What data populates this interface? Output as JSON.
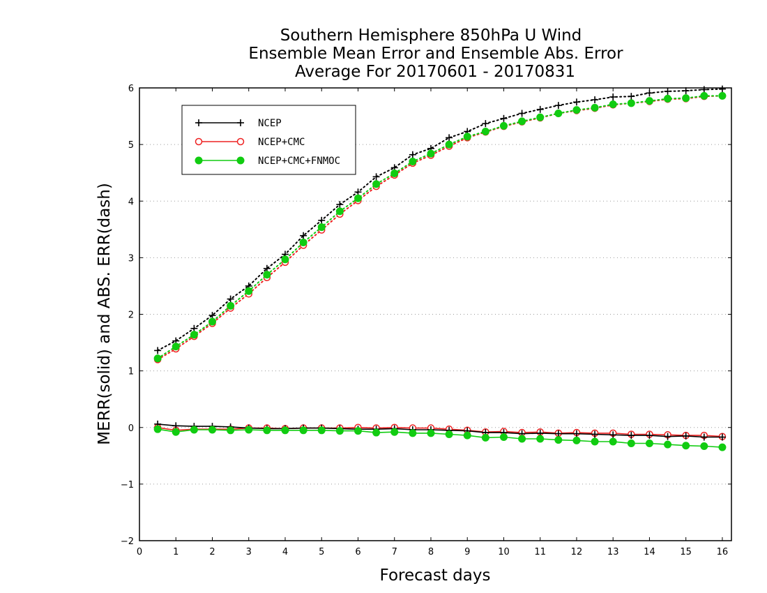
{
  "chart_data": {
    "type": "line",
    "title": [
      "Southern Hemisphere 850hPa U Wind",
      "Ensemble Mean Error and Ensemble Abs. Error",
      "Average For 20170601 - 20170831"
    ],
    "xlabel": "Forecast days",
    "ylabel": "MERR(solid) and ABS. ERR(dash)",
    "xlim": [
      0,
      16.25
    ],
    "ylim": [
      -2,
      6
    ],
    "xticks": [
      0,
      1,
      2,
      3,
      4,
      5,
      6,
      7,
      8,
      9,
      10,
      11,
      12,
      13,
      14,
      15,
      16
    ],
    "yticks": [
      -2,
      -1,
      0,
      1,
      2,
      3,
      4,
      5,
      6
    ],
    "grid": "horizontal dotted",
    "legend_position": "top-left",
    "x": [
      0.5,
      1,
      1.5,
      2,
      2.5,
      3,
      3.5,
      4,
      4.5,
      5,
      5.5,
      6,
      6.5,
      7,
      7.5,
      8,
      8.5,
      9,
      9.5,
      10,
      10.5,
      11,
      11.5,
      12,
      12.5,
      13,
      13.5,
      14,
      14.5,
      15,
      15.5,
      16
    ],
    "series": [
      {
        "name": "NCEP",
        "metric": "MERR",
        "line": "solid",
        "marker": "plus",
        "color": "#000000",
        "values": [
          0.06,
          0.03,
          0.02,
          0.02,
          0.01,
          -0.01,
          -0.02,
          -0.02,
          -0.01,
          -0.01,
          -0.02,
          -0.03,
          -0.03,
          -0.02,
          -0.04,
          -0.04,
          -0.05,
          -0.06,
          -0.09,
          -0.09,
          -0.11,
          -0.1,
          -0.11,
          -0.11,
          -0.12,
          -0.13,
          -0.14,
          -0.14,
          -0.16,
          -0.15,
          -0.17,
          -0.17
        ]
      },
      {
        "name": "NCEP+CMC",
        "metric": "MERR",
        "line": "solid",
        "marker": "open-circle",
        "color": "#ee2222",
        "values": [
          0.0,
          -0.05,
          -0.03,
          -0.03,
          -0.03,
          -0.01,
          -0.01,
          -0.02,
          -0.01,
          -0.01,
          -0.01,
          0.0,
          -0.01,
          0.0,
          -0.01,
          -0.01,
          -0.03,
          -0.05,
          -0.08,
          -0.07,
          -0.09,
          -0.08,
          -0.1,
          -0.09,
          -0.1,
          -0.1,
          -0.12,
          -0.12,
          -0.13,
          -0.14,
          -0.14,
          -0.16
        ]
      },
      {
        "name": "NCEP+CMC+FNMOC",
        "metric": "MERR",
        "line": "solid",
        "marker": "filled-circle",
        "color": "#11cc11",
        "values": [
          -0.03,
          -0.08,
          -0.04,
          -0.04,
          -0.05,
          -0.04,
          -0.05,
          -0.05,
          -0.05,
          -0.05,
          -0.06,
          -0.06,
          -0.09,
          -0.08,
          -0.1,
          -0.1,
          -0.12,
          -0.14,
          -0.18,
          -0.17,
          -0.2,
          -0.2,
          -0.22,
          -0.23,
          -0.25,
          -0.25,
          -0.28,
          -0.28,
          -0.3,
          -0.32,
          -0.33,
          -0.35
        ]
      },
      {
        "name": "NCEP",
        "metric": "ABS. ERR",
        "line": "dotted",
        "marker": "plus",
        "color": "#000000",
        "values": [
          1.36,
          1.53,
          1.75,
          1.98,
          2.27,
          2.5,
          2.81,
          3.06,
          3.39,
          3.66,
          3.94,
          4.16,
          4.43,
          4.59,
          4.82,
          4.93,
          5.12,
          5.23,
          5.37,
          5.46,
          5.55,
          5.62,
          5.69,
          5.75,
          5.79,
          5.84,
          5.85,
          5.91,
          5.94,
          5.95,
          5.97,
          5.98
        ]
      },
      {
        "name": "NCEP+CMC",
        "metric": "ABS. ERR",
        "line": "dotted",
        "marker": "open-circle",
        "color": "#ee2222",
        "values": [
          1.2,
          1.39,
          1.61,
          1.84,
          2.11,
          2.36,
          2.65,
          2.92,
          3.22,
          3.49,
          3.77,
          4.01,
          4.26,
          4.46,
          4.67,
          4.81,
          4.97,
          5.12,
          5.22,
          5.32,
          5.4,
          5.47,
          5.55,
          5.6,
          5.64,
          5.7,
          5.73,
          5.76,
          5.8,
          5.81,
          5.85,
          5.86
        ]
      },
      {
        "name": "NCEP+CMC+FNMOC",
        "metric": "ABS. ERR",
        "line": "dotted",
        "marker": "filled-circle",
        "color": "#11cc11",
        "values": [
          1.22,
          1.43,
          1.64,
          1.87,
          2.15,
          2.41,
          2.7,
          2.97,
          3.27,
          3.54,
          3.82,
          4.05,
          4.3,
          4.49,
          4.7,
          4.84,
          5.0,
          5.14,
          5.23,
          5.33,
          5.41,
          5.48,
          5.55,
          5.61,
          5.65,
          5.71,
          5.73,
          5.77,
          5.81,
          5.82,
          5.86,
          5.86
        ]
      }
    ],
    "legend": [
      {
        "label": "NCEP",
        "marker": "plus",
        "color": "#000000"
      },
      {
        "label": "NCEP+CMC",
        "marker": "open-circle",
        "color": "#ee2222"
      },
      {
        "label": "NCEP+CMC+FNMOC",
        "marker": "filled-circle",
        "color": "#11cc11"
      }
    ]
  }
}
